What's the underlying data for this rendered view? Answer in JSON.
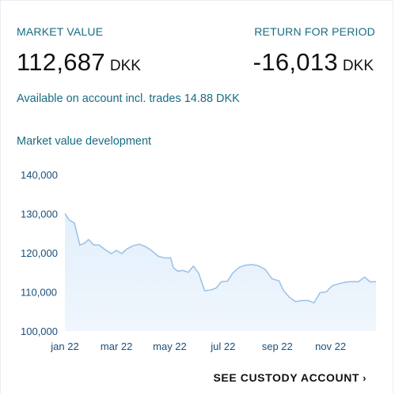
{
  "summary": {
    "market_value_label": "MARKET VALUE",
    "market_value": "112,687",
    "market_value_currency": "DKK",
    "return_label": "RETURN FOR PERIOD",
    "return_value": "-16,013",
    "return_currency": "DKK",
    "available_text": "Available on account incl. trades 14.88 DKK"
  },
  "chart_title": "Market value development",
  "chart_data": {
    "type": "area",
    "title": "",
    "xlabel": "",
    "ylabel": "",
    "ylim": [
      100000,
      140000
    ],
    "yticks": [
      100000,
      110000,
      120000,
      130000,
      140000
    ],
    "ytick_labels": [
      "100,000",
      "110,000",
      "120,000",
      "130,000",
      "140,000"
    ],
    "xticks": [
      "2022-01-01",
      "2022-03-01",
      "2022-05-01",
      "2022-07-01",
      "2022-09-01",
      "2022-11-01"
    ],
    "xtick_labels": [
      "jan 22",
      "mar 22",
      "may 22",
      "jul 22",
      "sep 22",
      "nov 22"
    ],
    "xlim": [
      "2022-01-01",
      "2022-12-23"
    ],
    "grid": false,
    "colors": {
      "line": "#9dc3e8",
      "fill": "#e3effb"
    },
    "x": [
      "2022-01-01",
      "2022-01-06",
      "2022-01-12",
      "2022-01-18",
      "2022-01-23",
      "2022-01-28",
      "2022-02-03",
      "2022-02-09",
      "2022-02-16",
      "2022-02-23",
      "2022-03-01",
      "2022-03-07",
      "2022-03-13",
      "2022-03-20",
      "2022-03-27",
      "2022-04-03",
      "2022-04-10",
      "2022-04-18",
      "2022-04-25",
      "2022-05-02",
      "2022-05-05",
      "2022-05-10",
      "2022-05-16",
      "2022-05-22",
      "2022-05-28",
      "2022-06-03",
      "2022-06-10",
      "2022-06-17",
      "2022-06-23",
      "2022-06-29",
      "2022-07-06",
      "2022-07-12",
      "2022-07-19",
      "2022-07-26",
      "2022-08-03",
      "2022-08-10",
      "2022-08-18",
      "2022-08-26",
      "2022-09-03",
      "2022-09-08",
      "2022-09-15",
      "2022-09-22",
      "2022-09-29",
      "2022-10-06",
      "2022-10-13",
      "2022-10-20",
      "2022-10-27",
      "2022-11-03",
      "2022-11-09",
      "2022-11-16",
      "2022-11-22",
      "2022-11-28",
      "2022-12-03",
      "2022-12-10",
      "2022-12-16",
      "2022-12-23"
    ],
    "y": [
      130000,
      128400,
      127600,
      122000,
      122400,
      123400,
      122000,
      122000,
      120800,
      119800,
      120600,
      119800,
      121000,
      121800,
      122200,
      121600,
      120600,
      119100,
      118700,
      118700,
      116200,
      115300,
      115500,
      115000,
      116600,
      114800,
      110300,
      110500,
      111000,
      112600,
      112700,
      114800,
      116200,
      116800,
      117000,
      116700,
      115800,
      113400,
      112800,
      110400,
      108600,
      107500,
      107800,
      107800,
      107200,
      109800,
      110000,
      111600,
      112000,
      112400,
      112600,
      112600,
      112600,
      113800,
      112600,
      112600
    ]
  },
  "custody": {
    "link_label": "SEE CUSTODY ACCOUNT",
    "chevron": "›"
  }
}
